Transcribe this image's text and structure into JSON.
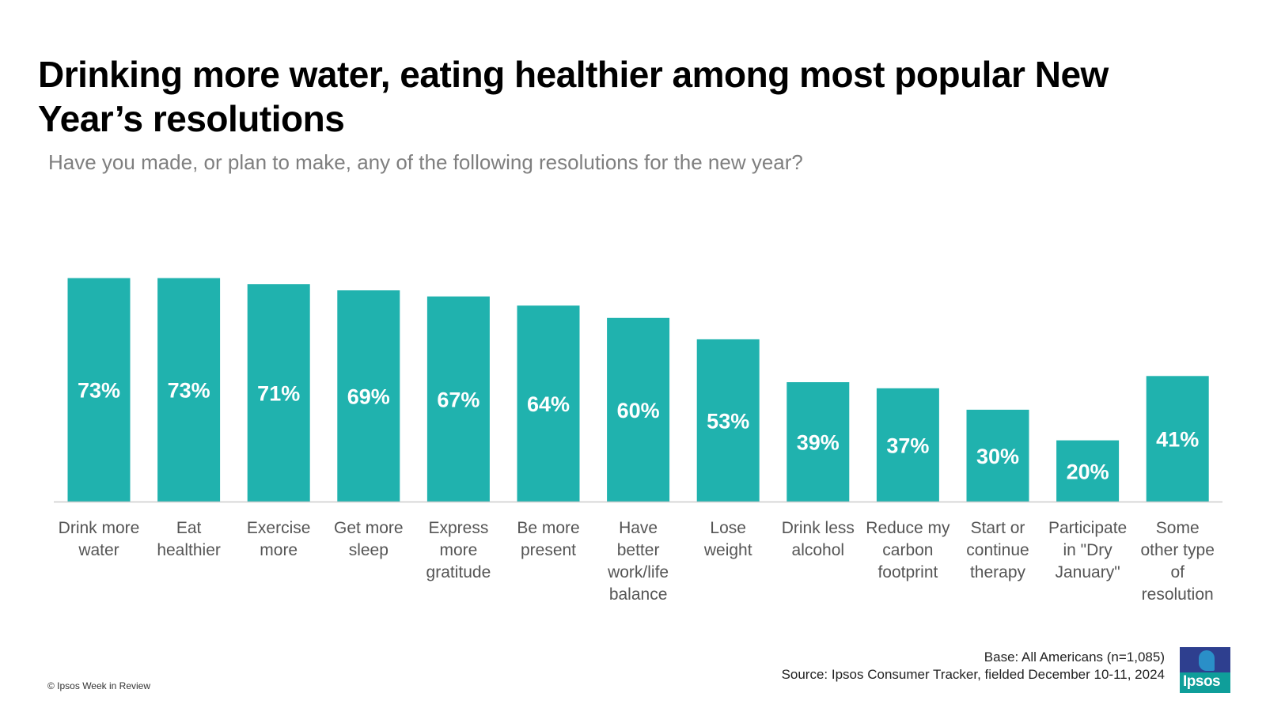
{
  "header": {
    "title": "Drinking more water, eating healthier among most popular New Year’s resolutions",
    "subtitle": "Have you made, or plan to make, any of the following resolutions for the new year?"
  },
  "footer": {
    "copyright": "© Ipsos Week in Review",
    "base": "Base: All Americans (n=1,085)",
    "source": "Source: Ipsos Consumer Tracker, fielded December 10-11, 2024",
    "logo_text": "Ipsos"
  },
  "colors": {
    "bar": "#20b2ae",
    "bar_label": "#ffffff",
    "axis_label": "#555555",
    "baseline": "#cccccc"
  },
  "chart_data": {
    "type": "bar",
    "title": "Drinking more water, eating healthier among most popular New Year’s resolutions",
    "subtitle": "Have you made, or plan to make, any of the following resolutions for the new year?",
    "xlabel": "",
    "ylabel": "",
    "ylim": [
      0,
      100
    ],
    "grid": false,
    "legend": "none",
    "categories": [
      [
        "Drink more",
        "water"
      ],
      [
        "Eat",
        "healthier"
      ],
      [
        "Exercise",
        "more"
      ],
      [
        "Get more",
        "sleep"
      ],
      [
        "Express",
        "more",
        "gratitude"
      ],
      [
        "Be more",
        "present"
      ],
      [
        "Have",
        "better",
        "work/life",
        "balance"
      ],
      [
        "Lose",
        "weight"
      ],
      [
        "Drink less",
        "alcohol"
      ],
      [
        "Reduce my",
        "carbon",
        "footprint"
      ],
      [
        "Start or",
        "continue",
        "therapy"
      ],
      [
        "Participate",
        "in \"Dry",
        "January\""
      ],
      [
        "Some",
        "other type",
        "of",
        "resolution"
      ]
    ],
    "values": [
      73,
      73,
      71,
      69,
      67,
      64,
      60,
      53,
      39,
      37,
      30,
      20,
      41
    ],
    "value_labels": [
      "73%",
      "73%",
      "71%",
      "69%",
      "67%",
      "64%",
      "60%",
      "53%",
      "39%",
      "37%",
      "30%",
      "20%",
      "41%"
    ]
  }
}
